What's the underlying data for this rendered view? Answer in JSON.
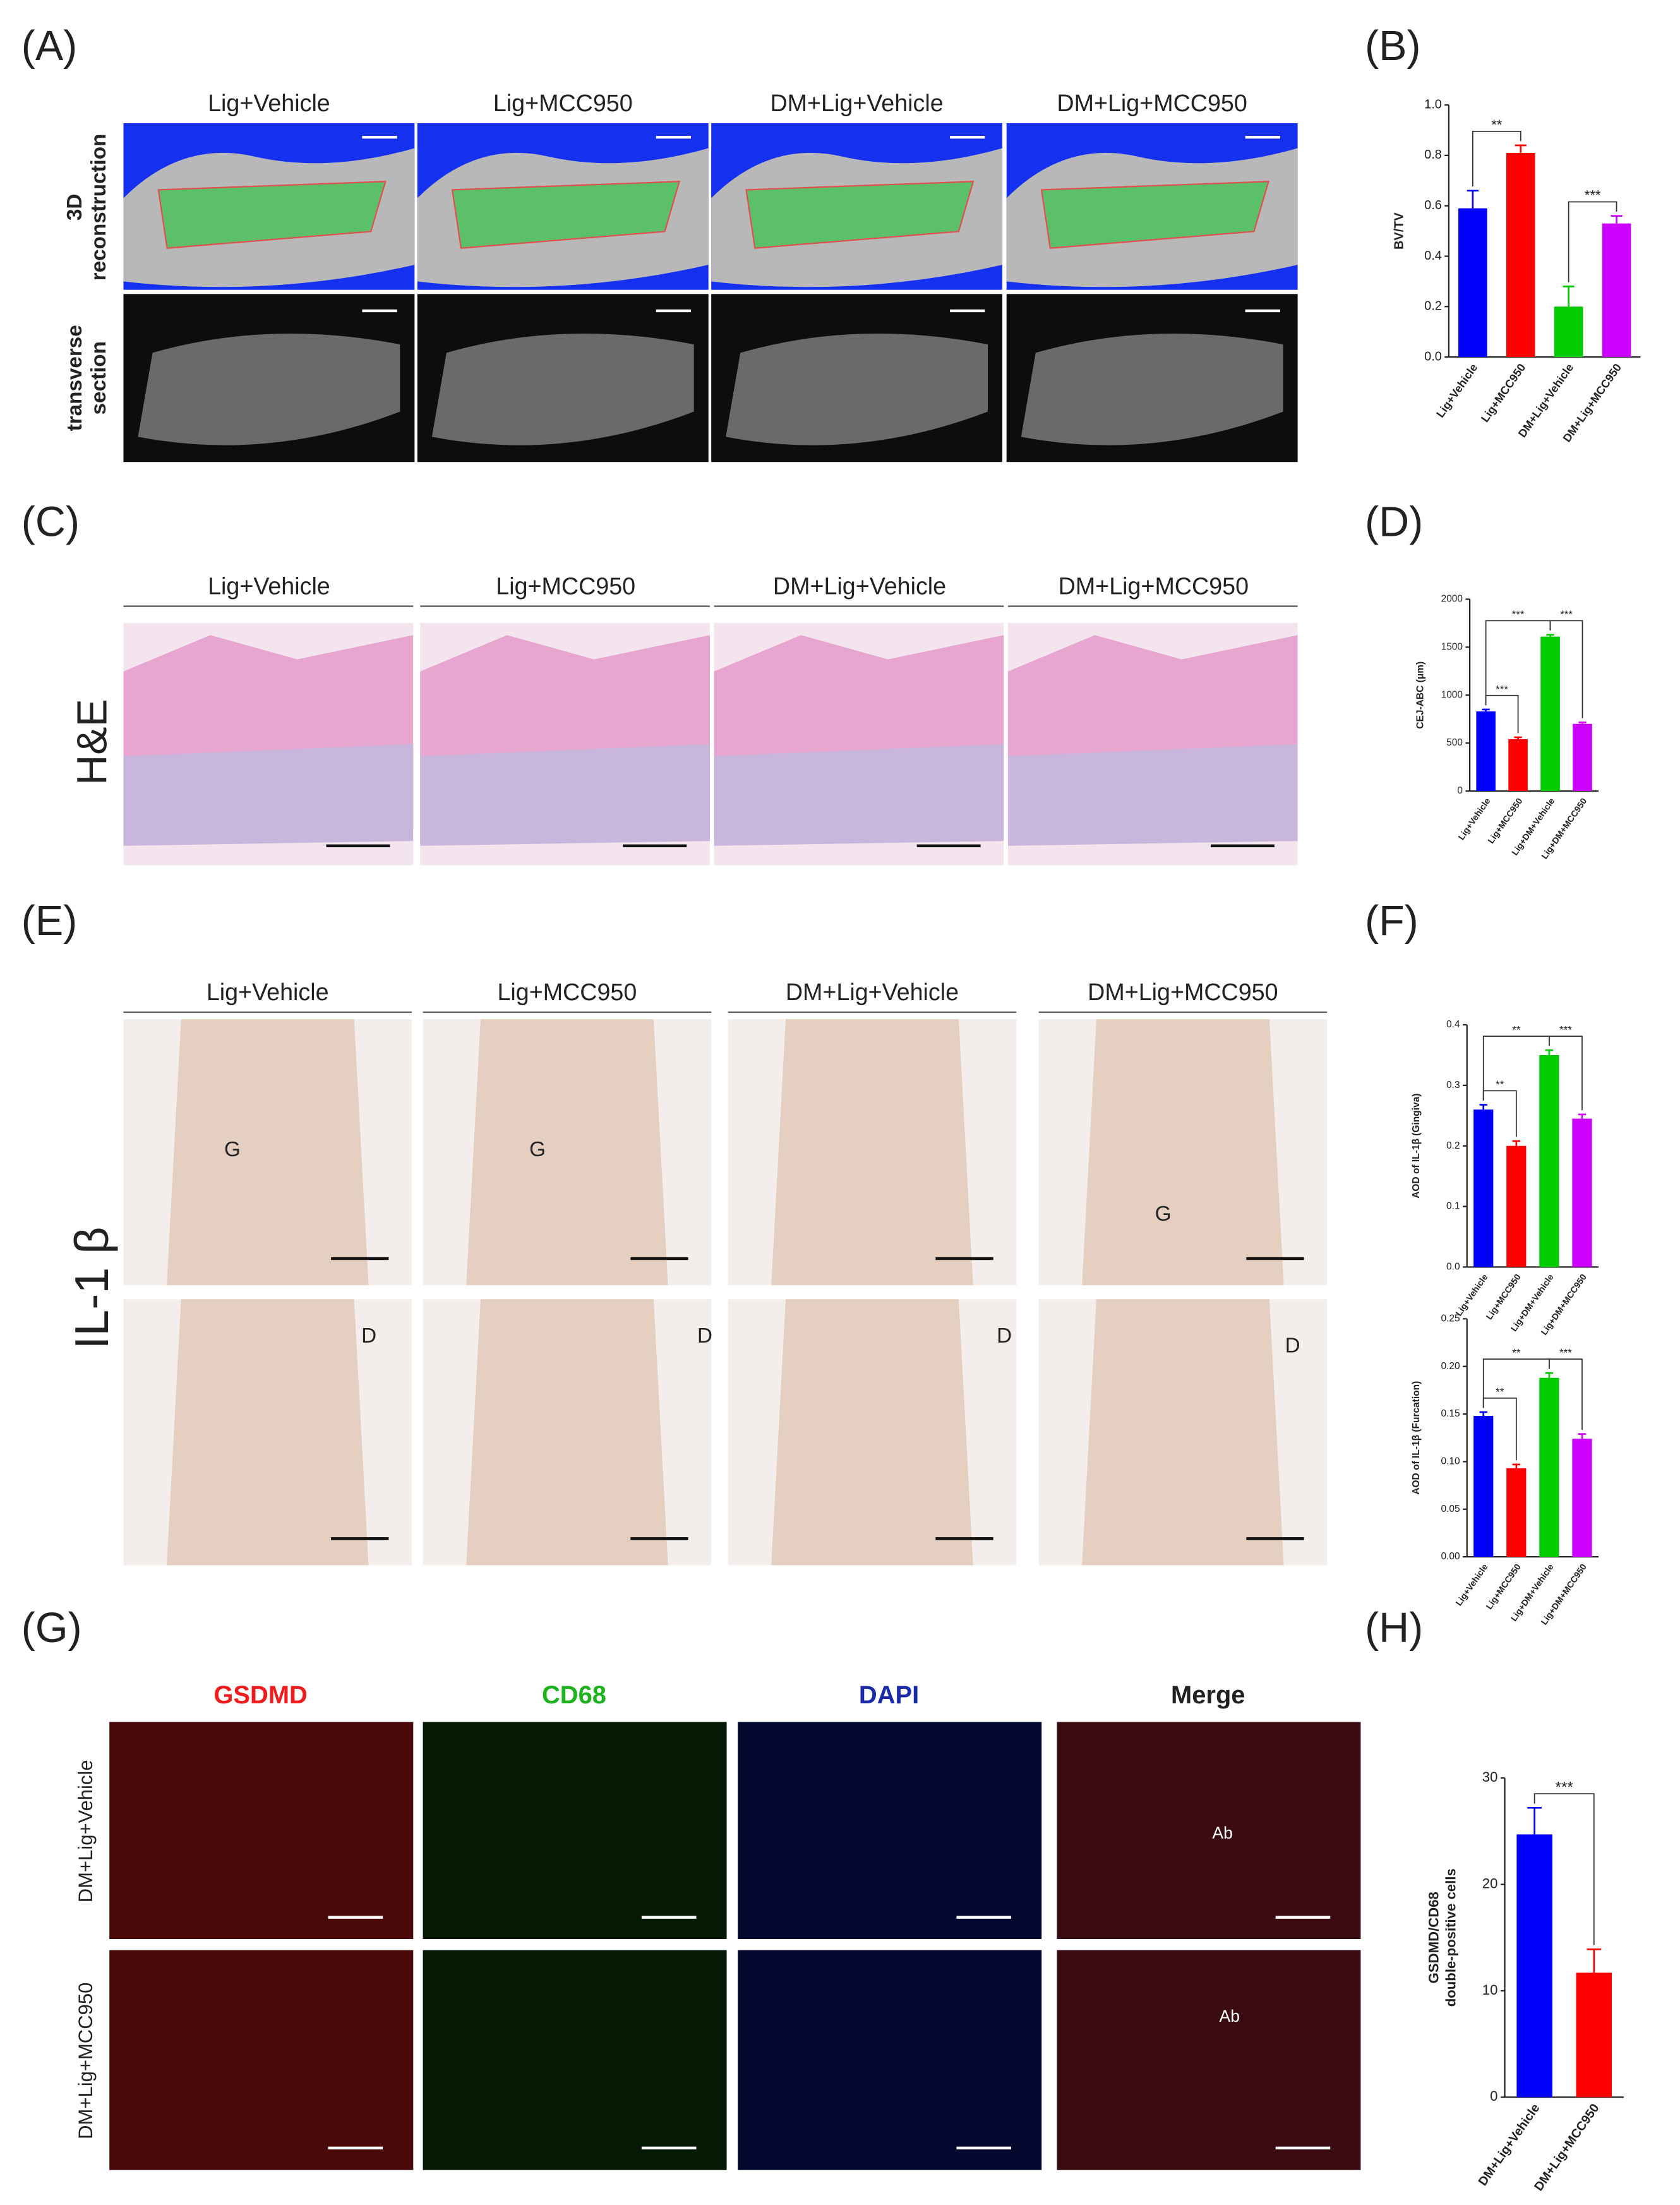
{
  "panel_labels": [
    "(A)",
    "(B)",
    "(C)",
    "(D)",
    "(E)",
    "(F)",
    "(G)",
    "(H)"
  ],
  "panel_A": {
    "columns": [
      "Lig+Vehicle",
      "Lig+MCC950",
      "DM+Lig+Vehicle",
      "DM+Lig+MCC950"
    ],
    "rows": [
      [
        "3D",
        "reconstruction"
      ],
      [
        "transverse",
        "section"
      ]
    ]
  },
  "panel_C": {
    "columns": [
      "Lig+Vehicle",
      "Lig+MCC950",
      "DM+Lig+Vehicle",
      "DM+Lig+MCC950"
    ],
    "row": "H&E"
  },
  "panel_E": {
    "columns": [
      "Lig+Vehicle",
      "Lig+MCC950",
      "DM+Lig+Vehicle",
      "DM+Lig+MCC950"
    ],
    "row": "IL-1 β",
    "gingiva_labels": [
      "G",
      "G",
      "G"
    ],
    "dentin_labels": [
      "D",
      "D",
      "D",
      "D"
    ]
  },
  "panel_G": {
    "columns": [
      "GSDMD",
      "CD68",
      "DAPI",
      "Merge"
    ],
    "rows": [
      "DM+Lig+Vehicle",
      "DM+Lig+MCC950"
    ],
    "merge_labels": [
      "Ab",
      "Ab"
    ]
  },
  "chart_data": [
    {
      "type": "bar",
      "y_label": "BV/TV",
      "categories": [
        "Lig+Vehicle",
        "Lig+MCC950",
        "DM+Lig+Vehicle",
        "DM+Lig+MCC950"
      ],
      "values": [
        0.59,
        0.81,
        0.2,
        0.53
      ],
      "errors": [
        0.07,
        0.03,
        0.08,
        0.03
      ],
      "colors": [
        "#0000ff",
        "#ff0000",
        "#00cc00",
        "#cc00ff"
      ],
      "ylim": [
        0,
        1
      ],
      "yticks": [
        {
          "value": 0,
          "label": "0.0"
        },
        0.2,
        0.4,
        0.6,
        0.8,
        {
          "value": 1,
          "label": "1.0"
        }
      ],
      "annotations": [
        {
          "text": "**",
          "between": [
            0,
            1
          ]
        },
        {
          "text": "***",
          "between": [
            2,
            3
          ]
        }
      ]
    },
    {
      "type": "bar",
      "y_label": "CEJ-ABC (μm)",
      "categories": [
        "Lig+Vehicle",
        "Lig+MCC950",
        "Lig+DM+Vehicle",
        "Lig+DM+MCC950"
      ],
      "values": [
        830,
        540,
        1610,
        700
      ],
      "errors": [
        20,
        20,
        20,
        15
      ],
      "colors": [
        "#0000ff",
        "#ff0000",
        "#00cc00",
        "#cc00ff"
      ],
      "ylim": [
        0,
        2000
      ],
      "yticks": [
        0,
        500,
        1000,
        1500,
        2000
      ],
      "annotations": [
        {
          "text": "***",
          "between": [
            0,
            1
          ]
        },
        {
          "text": "***",
          "between": [
            0,
            2
          ]
        },
        {
          "text": "***",
          "between": [
            2,
            3
          ]
        }
      ]
    },
    {
      "type": "bar",
      "y_label": "AOD of IL-1β (Gingiva)",
      "categories": [
        "Lig+Vehicle",
        "Lig+MCC950",
        "Lig+DM+Vehicle",
        "Lig+DM+MCC950"
      ],
      "values": [
        0.26,
        0.2,
        0.35,
        0.245
      ],
      "errors": [
        0.008,
        0.008,
        0.008,
        0.007
      ],
      "colors": [
        "#0000ff",
        "#ff0000",
        "#00cc00",
        "#cc00ff"
      ],
      "ylim": [
        0,
        0.4
      ],
      "yticks": [
        {
          "value": 0,
          "label": "0.0"
        },
        0.1,
        0.2,
        0.3,
        0.4
      ],
      "annotations": [
        {
          "text": "**",
          "between": [
            0,
            1
          ]
        },
        {
          "text": "**",
          "between": [
            0,
            2
          ]
        },
        {
          "text": "***",
          "between": [
            2,
            3
          ]
        }
      ]
    },
    {
      "type": "bar",
      "y_label": "AOD of IL-1β (Furcation)",
      "categories": [
        "Lig+Vehicle",
        "Lig+MCC950",
        "Lig+DM+Vehicle",
        "Lig+DM+MCC950"
      ],
      "values": [
        0.148,
        0.093,
        0.188,
        0.124
      ],
      "errors": [
        0.004,
        0.004,
        0.005,
        0.005
      ],
      "colors": [
        "#0000ff",
        "#ff0000",
        "#00cc00",
        "#cc00ff"
      ],
      "ylim": [
        0,
        0.25
      ],
      "yticks": [
        {
          "value": 0,
          "label": "0.00"
        },
        0.05,
        {
          "value": 0.1,
          "label": "0.10"
        },
        0.15,
        {
          "value": 0.2,
          "label": "0.20"
        },
        0.25
      ],
      "annotations": [
        {
          "text": "**",
          "between": [
            0,
            1
          ]
        },
        {
          "text": "**",
          "between": [
            0,
            2
          ]
        },
        {
          "text": "***",
          "between": [
            2,
            3
          ]
        }
      ]
    },
    {
      "type": "bar",
      "y_label": [
        "GSDMD/CD68",
        "double-positive cells"
      ],
      "categories": [
        "DM+Lig+Vehicle",
        "DM+Lig+MCC950"
      ],
      "values": [
        24.7,
        11.7
      ],
      "errors": [
        2.5,
        2.2
      ],
      "colors": [
        "#0000ff",
        "#ff0000"
      ],
      "ylim": [
        0,
        30
      ],
      "yticks": [
        0,
        10,
        20,
        30
      ],
      "annotations": [
        {
          "text": "***",
          "between": [
            0,
            1
          ]
        }
      ]
    }
  ]
}
